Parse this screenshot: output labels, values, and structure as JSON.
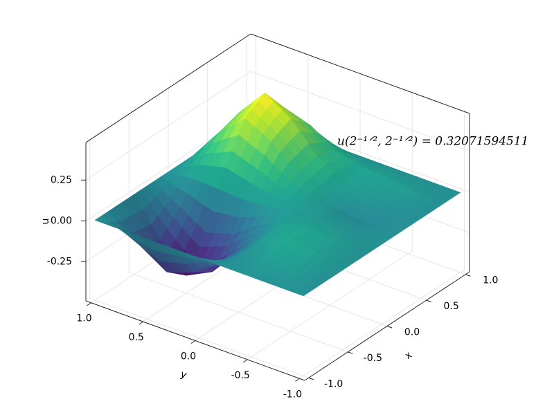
{
  "chart_data": {
    "type": "surface",
    "x": [
      -1,
      -0.75,
      -0.5,
      -0.25,
      0,
      0.25,
      0.5,
      0.75,
      1
    ],
    "y": [
      -1,
      -0.75,
      -0.5,
      -0.25,
      0,
      0.25,
      0.5,
      0.75,
      1
    ],
    "z": [
      [
        0,
        0,
        0,
        0,
        0,
        0,
        0,
        0,
        0
      ],
      [
        0,
        0.03,
        0.05,
        0.04,
        0.01,
        -0.02,
        0,
        0.03,
        0
      ],
      [
        0,
        0.04,
        0.07,
        0.06,
        0.02,
        -0.02,
        0.02,
        0.05,
        0
      ],
      [
        0,
        0,
        0.03,
        0.04,
        0.03,
        0.03,
        0.05,
        0.06,
        0
      ],
      [
        0,
        -0.1,
        -0.12,
        -0.04,
        0.05,
        0.12,
        0.15,
        0.1,
        0
      ],
      [
        0,
        -0.22,
        -0.3,
        -0.15,
        0.08,
        0.26,
        0.32,
        0.2,
        0
      ],
      [
        0,
        -0.28,
        -0.38,
        -0.2,
        0.12,
        0.34,
        0.42,
        0.25,
        0
      ],
      [
        0,
        -0.18,
        -0.22,
        -0.1,
        0.08,
        0.2,
        0.24,
        0.14,
        0
      ],
      [
        0,
        0,
        0,
        0,
        0,
        0,
        0,
        0,
        0
      ]
    ],
    "colormap": "viridis",
    "xlabel": "x",
    "ylabel": "y",
    "zlabel": "u",
    "xlim": [
      -1.05,
      1.05
    ],
    "ylim": [
      -1.05,
      1.05
    ],
    "zlim": [
      -0.49,
      0.48
    ],
    "xticks": [
      {
        "value": -1,
        "label": "-1.0"
      },
      -0.5,
      {
        "value": 0,
        "label": "0.0"
      },
      0.5,
      {
        "value": 1,
        "label": "1.0"
      }
    ],
    "yticks": [
      {
        "value": -1,
        "label": "-1.0"
      },
      -0.5,
      {
        "value": 0,
        "label": "0.0"
      },
      0.5,
      {
        "value": 1,
        "label": "1.0"
      }
    ],
    "zticks": [
      -0.25,
      {
        "value": 0,
        "label": "0.00"
      },
      0.25
    ],
    "grid": true,
    "annotations": [
      {
        "text": "u(2⁻¹ᐟ², 2⁻¹ᐟ²) = 0.32071594511"
      }
    ]
  }
}
